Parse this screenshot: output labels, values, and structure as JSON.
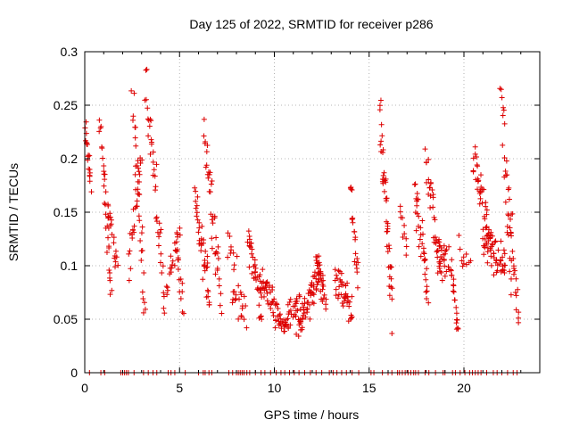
{
  "chart_data": {
    "type": "scatter",
    "title": "Day 125 of 2022, SRMTID for receiver p286",
    "xlabel": "GPS time / hours",
    "ylabel": "SRMTID / TECUs",
    "xlim": [
      0,
      24
    ],
    "ylim": [
      0,
      0.3
    ],
    "xticks": [
      0,
      5,
      10,
      15,
      20
    ],
    "yticks": [
      0,
      0.05,
      0.1,
      0.15,
      0.2,
      0.25,
      0.3
    ],
    "xtick_labels": [
      "0",
      "5",
      "10",
      "15",
      "20"
    ],
    "ytick_labels": [
      "0",
      "0.05",
      "0.1",
      "0.15",
      "0.2",
      "0.25",
      "0.3"
    ],
    "grid": true,
    "marker": "+",
    "color": "#dd0000",
    "series": [
      {
        "name": "SRMTID",
        "segments": [
          {
            "t0": 0.0,
            "t1": 0.3,
            "y0": 0.23,
            "y1": 0.18,
            "n": 20,
            "s": 0.02
          },
          {
            "t0": 0.8,
            "t1": 1.4,
            "y0": 0.24,
            "y1": 0.07,
            "n": 30,
            "s": 0.02
          },
          {
            "t0": 1.2,
            "t1": 1.7,
            "y0": 0.16,
            "y1": 0.1,
            "n": 20,
            "s": 0.02
          },
          {
            "t0": 2.3,
            "t1": 3.0,
            "y0": 0.1,
            "y1": 0.2,
            "n": 25,
            "s": 0.02
          },
          {
            "t0": 2.5,
            "t1": 3.2,
            "y0": 0.26,
            "y1": 0.06,
            "n": 30,
            "s": 0.025
          },
          {
            "t0": 3.2,
            "t1": 4.2,
            "y0": 0.28,
            "y1": 0.07,
            "n": 40,
            "s": 0.03
          },
          {
            "t0": 4.3,
            "t1": 5.0,
            "y0": 0.08,
            "y1": 0.13,
            "n": 20,
            "s": 0.015
          },
          {
            "t0": 4.8,
            "t1": 5.2,
            "y0": 0.13,
            "y1": 0.05,
            "n": 15,
            "s": 0.015
          },
          {
            "t0": 5.8,
            "t1": 6.6,
            "y0": 0.16,
            "y1": 0.07,
            "n": 40,
            "s": 0.025
          },
          {
            "t0": 6.3,
            "t1": 7.2,
            "y0": 0.23,
            "y1": 0.07,
            "n": 40,
            "s": 0.03
          },
          {
            "t0": 7.5,
            "t1": 8.0,
            "y0": 0.12,
            "y1": 0.1,
            "n": 10,
            "s": 0.015
          },
          {
            "t0": 7.8,
            "t1": 8.5,
            "y0": 0.08,
            "y1": 0.05,
            "n": 20,
            "s": 0.02
          },
          {
            "t0": 8.6,
            "t1": 9.3,
            "y0": 0.13,
            "y1": 0.06,
            "n": 35,
            "s": 0.025
          },
          {
            "t0": 9.2,
            "t1": 10.6,
            "y0": 0.09,
            "y1": 0.04,
            "n": 60,
            "s": 0.018
          },
          {
            "t0": 10.6,
            "t1": 11.3,
            "y0": 0.05,
            "y1": 0.07,
            "n": 25,
            "s": 0.015
          },
          {
            "t0": 11.2,
            "t1": 12.4,
            "y0": 0.04,
            "y1": 0.09,
            "n": 60,
            "s": 0.02
          },
          {
            "t0": 12.2,
            "t1": 12.7,
            "y0": 0.11,
            "y1": 0.07,
            "n": 30,
            "s": 0.02
          },
          {
            "t0": 13.2,
            "t1": 14.1,
            "y0": 0.09,
            "y1": 0.06,
            "n": 40,
            "s": 0.02
          },
          {
            "t0": 14.0,
            "t1": 14.4,
            "y0": 0.17,
            "y1": 0.09,
            "n": 20,
            "s": 0.02
          },
          {
            "t0": 15.6,
            "t1": 16.2,
            "y0": 0.24,
            "y1": 0.06,
            "n": 45,
            "s": 0.025
          },
          {
            "t0": 16.6,
            "t1": 17.0,
            "y0": 0.16,
            "y1": 0.12,
            "n": 10,
            "s": 0.02
          },
          {
            "t0": 17.4,
            "t1": 18.1,
            "y0": 0.17,
            "y1": 0.08,
            "n": 35,
            "s": 0.025
          },
          {
            "t0": 18.0,
            "t1": 18.8,
            "y0": 0.2,
            "y1": 0.09,
            "n": 35,
            "s": 0.025
          },
          {
            "t0": 18.6,
            "t1": 19.2,
            "y0": 0.11,
            "y1": 0.1,
            "n": 25,
            "s": 0.02
          },
          {
            "t0": 19.3,
            "t1": 19.7,
            "y0": 0.1,
            "y1": 0.04,
            "n": 20,
            "s": 0.015
          },
          {
            "t0": 19.7,
            "t1": 20.3,
            "y0": 0.12,
            "y1": 0.1,
            "n": 10,
            "s": 0.015
          },
          {
            "t0": 20.5,
            "t1": 21.4,
            "y0": 0.2,
            "y1": 0.12,
            "n": 40,
            "s": 0.025
          },
          {
            "t0": 21.0,
            "t1": 22.2,
            "y0": 0.12,
            "y1": 0.1,
            "n": 50,
            "s": 0.025
          },
          {
            "t0": 21.9,
            "t1": 22.5,
            "y0": 0.28,
            "y1": 0.08,
            "n": 25,
            "s": 0.03
          },
          {
            "t0": 22.3,
            "t1": 22.9,
            "y0": 0.17,
            "y1": 0.05,
            "n": 25,
            "s": 0.03
          }
        ],
        "zero_times": [
          0.25,
          0.85,
          1.05,
          1.9,
          2.0,
          2.1,
          2.2,
          2.3,
          2.6,
          3.1,
          3.35,
          3.6,
          3.8,
          4.4,
          4.55,
          4.75,
          5.3,
          6.0,
          6.25,
          6.35,
          6.55,
          6.7,
          7.6,
          7.8,
          8.0,
          8.1,
          8.2,
          8.3,
          8.4,
          8.55,
          8.7,
          9.0,
          9.3,
          9.5,
          9.8,
          10.1,
          10.35,
          10.55,
          10.8,
          11.05,
          11.3,
          11.6,
          11.9,
          12.2,
          12.5,
          12.9,
          13.1,
          13.3,
          13.55,
          13.8,
          14.1,
          14.45,
          15.1,
          15.25,
          15.7,
          16.0,
          16.2,
          16.5,
          16.6,
          16.75,
          16.9,
          17.05,
          17.2,
          17.35,
          17.45,
          17.6,
          17.95,
          18.15,
          18.5,
          18.9,
          19.0,
          19.4,
          19.55,
          19.8,
          20.05,
          20.3,
          20.45,
          20.6,
          20.75,
          20.9,
          21.2,
          21.55,
          21.75,
          22.0,
          22.3,
          22.6,
          22.8
        ]
      }
    ]
  }
}
